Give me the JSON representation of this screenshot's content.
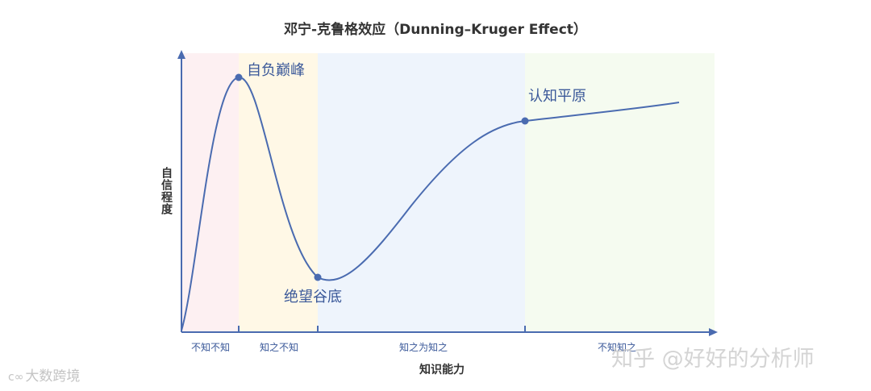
{
  "title": "邓宁-克鲁格效应（Dunning–Kruger Effect）",
  "y_axis_label": "自信程度",
  "x_axis_label": "知识能力",
  "stages": [
    {
      "label": "不知不知",
      "color": "#fdf0f2"
    },
    {
      "label": "知之不知",
      "color": "#fff8e6"
    },
    {
      "label": "知之为知之",
      "color": "#eef4fc"
    },
    {
      "label": "不知知之",
      "color": "#f5fbf0"
    }
  ],
  "points": [
    {
      "label": "自负巅峰"
    },
    {
      "label": "绝望谷底"
    },
    {
      "label": "认知平原"
    }
  ],
  "colors": {
    "curve": "#4a6bb0",
    "axis": "#4a6bb0",
    "label_text": "#3a5899"
  },
  "watermarks": {
    "left_logo": "c∞",
    "left_text": "大数跨境",
    "right_text": "知乎 @好好的分析师"
  }
}
